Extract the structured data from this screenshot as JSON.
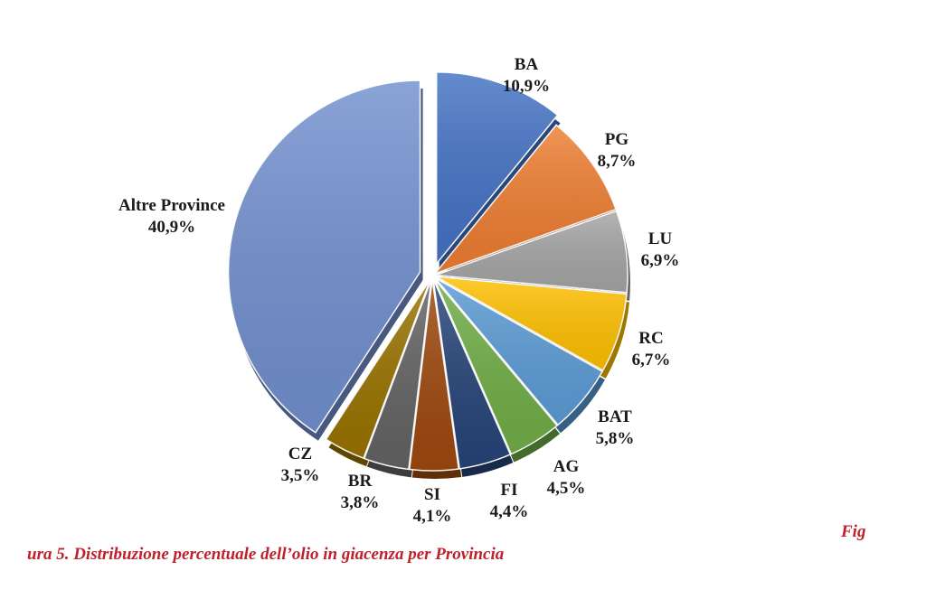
{
  "caption": {
    "part1": "Fig",
    "part2": "ura 5. Distribuzione percentuale dell’olio in giacenza per Provincia"
  },
  "chart_data": {
    "type": "pie",
    "title": "",
    "slices": [
      {
        "label": "BA",
        "value": 10.9,
        "text": "10,9%",
        "color": "#4472c4",
        "exploded": true
      },
      {
        "label": "PG",
        "value": 8.7,
        "text": "8,7%",
        "color": "#ed7d31",
        "exploded": false
      },
      {
        "label": "LU",
        "value": 6.9,
        "text": "6,9%",
        "color": "#a5a5a5",
        "exploded": false
      },
      {
        "label": "RC",
        "value": 6.7,
        "text": "6,7%",
        "color": "#ffc000",
        "exploded": false
      },
      {
        "label": "BAT",
        "value": 5.8,
        "text": "5,8%",
        "color": "#5b9bd5",
        "exploded": false
      },
      {
        "label": "AG",
        "value": 4.5,
        "text": "4,5%",
        "color": "#70ad47",
        "exploded": false
      },
      {
        "label": "FI",
        "value": 4.4,
        "text": "4,4%",
        "color": "#264478",
        "exploded": false
      },
      {
        "label": "SI",
        "value": 4.1,
        "text": "4,1%",
        "color": "#9e480e",
        "exploded": false
      },
      {
        "label": "BR",
        "value": 3.8,
        "text": "3,8%",
        "color": "#636363",
        "exploded": false
      },
      {
        "label": "CZ",
        "value": 3.5,
        "text": "3,5%",
        "color": "#997300",
        "exploded": false
      },
      {
        "label": "Altre Province",
        "value": 40.9,
        "text": "40,9%",
        "color": "#7290cf",
        "exploded": true
      }
    ],
    "legend": "none",
    "data_labels": "outside"
  }
}
